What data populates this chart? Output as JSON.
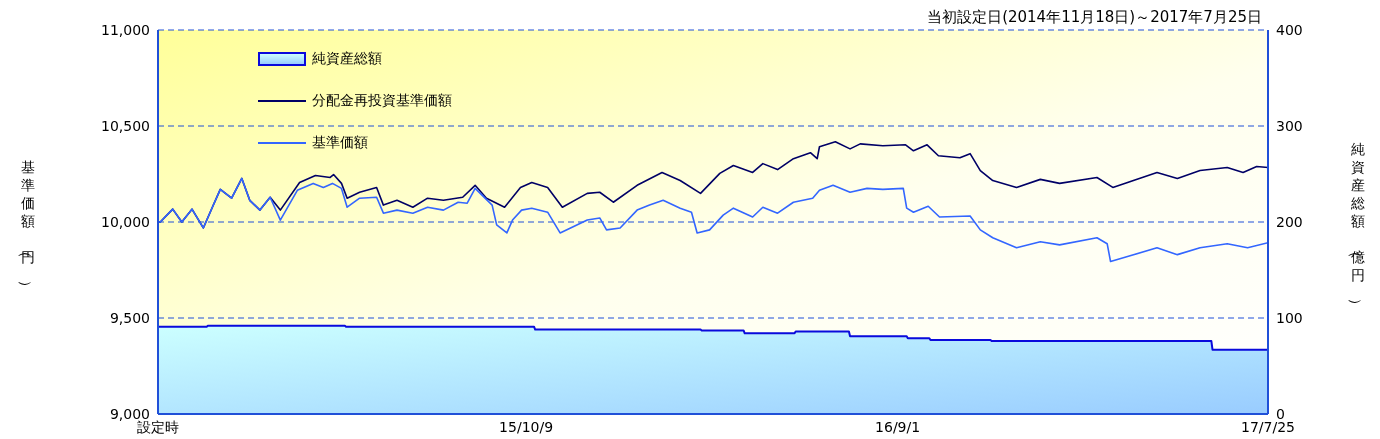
{
  "chart_data": {
    "type": "line",
    "title": "当初設定日(2014年11月18日)～2017年7月25日",
    "ylabel": "基準価額（円）",
    "y2label": "純資産総額（億円）",
    "xlim": [
      "2014-11-18",
      "2017-07-25"
    ],
    "xticks": [
      {
        "value": "2014-11-18",
        "label": "設定時"
      },
      {
        "value": "2015-10-09",
        "label": "15/10/9"
      },
      {
        "value": "2016-09-01",
        "label": "16/9/1"
      },
      {
        "value": "2017-07-25",
        "label": "17/7/25"
      }
    ],
    "ylim": [
      9000,
      11000
    ],
    "yticks": [
      {
        "value": 9000,
        "label": "9,000"
      },
      {
        "value": 9500,
        "label": "9,500"
      },
      {
        "value": 10000,
        "label": "10,000"
      },
      {
        "value": 10500,
        "label": "10,500"
      },
      {
        "value": 11000,
        "label": "11,000"
      }
    ],
    "y2lim": [
      0,
      400
    ],
    "y2ticks": [
      0,
      100,
      200,
      300,
      400
    ],
    "grid": "y",
    "legend": "top left",
    "marker": "none",
    "line_style": "solid",
    "series": [
      {
        "name": "純資産総額",
        "type": "area",
        "axis": "y2",
        "color": "#0a0adc",
        "x": [
          "2014-11-18",
          "2014-12-31",
          "2015-01-01",
          "2015-05-02",
          "2015-05-03",
          "2015-10-16",
          "2015-10-17",
          "2016-03-11",
          "2016-03-12",
          "2016-04-18",
          "2016-04-19",
          "2016-06-02",
          "2016-06-03",
          "2016-07-20",
          "2016-07-21",
          "2016-09-09",
          "2016-09-10",
          "2016-09-29",
          "2016-09-30",
          "2016-11-22",
          "2016-11-23",
          "2017-06-05",
          "2017-06-06",
          "2017-07-25"
        ],
        "values": [
          91,
          91,
          92,
          92,
          91,
          91,
          88,
          88,
          87,
          87,
          84,
          84,
          86,
          86,
          81,
          81,
          79,
          79,
          77,
          77,
          76,
          76,
          67,
          67
        ]
      },
      {
        "name": "分配金再投資基準価額",
        "color": "#000066",
        "x": [
          "2014-11-18",
          "2014-11-20",
          "2014-12-01",
          "2014-12-09",
          "2014-12-18",
          "2014-12-28",
          "2015-01-05",
          "2015-01-12",
          "2015-01-22",
          "2015-01-31",
          "2015-02-07",
          "2015-02-16",
          "2015-02-25",
          "2015-03-06",
          "2015-03-23",
          "2015-04-06",
          "2015-04-19",
          "2015-04-22",
          "2015-04-29",
          "2015-05-04",
          "2015-05-15",
          "2015-05-30",
          "2015-06-05",
          "2015-06-17",
          "2015-07-01",
          "2015-07-14",
          "2015-07-28",
          "2015-08-14",
          "2015-08-25",
          "2015-09-04",
          "2015-09-20",
          "2015-10-04",
          "2015-10-14",
          "2015-10-28",
          "2015-11-10",
          "2015-12-02",
          "2015-12-13",
          "2015-12-25",
          "2016-01-15",
          "2016-02-06",
          "2016-02-22",
          "2016-03-11",
          "2016-03-28",
          "2016-04-09",
          "2016-04-26",
          "2016-05-05",
          "2016-05-18",
          "2016-06-01",
          "2016-06-16",
          "2016-06-22",
          "2016-06-24",
          "2016-07-08",
          "2016-07-21",
          "2016-07-30",
          "2016-08-19",
          "2016-09-08",
          "2016-09-15",
          "2016-09-27",
          "2016-10-07",
          "2016-10-26",
          "2016-11-04",
          "2016-11-13",
          "2016-11-24",
          "2016-12-15",
          "2017-01-05",
          "2017-01-22",
          "2017-02-24",
          "2017-03-10",
          "2017-04-18",
          "2017-05-06",
          "2017-05-26",
          "2017-06-19",
          "2017-07-03",
          "2017-07-15",
          "2017-07-25"
        ],
        "values": [
          10000,
          10000,
          10067,
          10000,
          10067,
          9969,
          10077,
          10170,
          10124,
          10227,
          10113,
          10062,
          10129,
          10062,
          10206,
          10242,
          10232,
          10247,
          10201,
          10124,
          10155,
          10180,
          10088,
          10113,
          10077,
          10124,
          10113,
          10129,
          10191,
          10124,
          10077,
          10180,
          10206,
          10180,
          10077,
          10149,
          10155,
          10103,
          10191,
          10258,
          10216,
          10149,
          10253,
          10294,
          10258,
          10304,
          10273,
          10330,
          10361,
          10330,
          10392,
          10418,
          10381,
          10407,
          10397,
          10402,
          10371,
          10402,
          10345,
          10335,
          10356,
          10268,
          10216,
          10180,
          10222,
          10201,
          10232,
          10180,
          10258,
          10227,
          10268,
          10284,
          10258,
          10289,
          10284
        ]
      },
      {
        "name": "基準価額",
        "color": "#3366ff",
        "x": [
          "2014-11-18",
          "2014-11-20",
          "2014-12-01",
          "2014-12-09",
          "2014-12-18",
          "2014-12-28",
          "2015-01-05",
          "2015-01-12",
          "2015-01-22",
          "2015-01-31",
          "2015-02-07",
          "2015-02-16",
          "2015-02-25",
          "2015-03-06",
          "2015-03-21",
          "2015-04-04",
          "2015-04-13",
          "2015-04-21",
          "2015-04-29",
          "2015-05-04",
          "2015-05-15",
          "2015-05-30",
          "2015-06-05",
          "2015-06-17",
          "2015-07-01",
          "2015-07-14",
          "2015-07-28",
          "2015-08-10",
          "2015-08-18",
          "2015-08-25",
          "2015-09-09",
          "2015-09-13",
          "2015-09-22",
          "2015-09-27",
          "2015-10-05",
          "2015-10-14",
          "2015-10-28",
          "2015-11-08",
          "2015-12-02",
          "2015-12-13",
          "2015-12-19",
          "2015-12-31",
          "2016-01-15",
          "2016-01-26",
          "2016-02-07",
          "2016-02-22",
          "2016-03-03",
          "2016-03-08",
          "2016-03-19",
          "2016-03-31",
          "2016-04-09",
          "2016-04-26",
          "2016-05-05",
          "2016-05-18",
          "2016-06-01",
          "2016-06-18",
          "2016-06-24",
          "2016-07-06",
          "2016-07-21",
          "2016-08-05",
          "2016-08-19",
          "2016-09-06",
          "2016-09-09",
          "2016-09-15",
          "2016-09-28",
          "2016-10-08",
          "2016-11-04",
          "2016-11-13",
          "2016-11-24",
          "2016-12-15",
          "2017-01-05",
          "2017-01-22",
          "2017-02-24",
          "2017-03-05",
          "2017-03-08",
          "2017-03-23",
          "2017-04-18",
          "2017-05-06",
          "2017-05-26",
          "2017-06-19",
          "2017-07-07",
          "2017-07-25"
        ],
        "values": [
          10000,
          10000,
          10067,
          10000,
          10067,
          9969,
          10077,
          10170,
          10124,
          10227,
          10113,
          10062,
          10129,
          10010,
          10165,
          10201,
          10180,
          10201,
          10175,
          10077,
          10124,
          10129,
          10046,
          10062,
          10046,
          10077,
          10062,
          10103,
          10098,
          10175,
          10088,
          9985,
          9943,
          10010,
          10062,
          10072,
          10051,
          9943,
          10010,
          10021,
          9959,
          9969,
          10062,
          10088,
          10113,
          10072,
          10051,
          9943,
          9959,
          10036,
          10072,
          10026,
          10077,
          10046,
          10103,
          10124,
          10165,
          10191,
          10155,
          10175,
          10170,
          10175,
          10072,
          10051,
          10082,
          10026,
          10031,
          9959,
          9918,
          9866,
          9897,
          9881,
          9918,
          9887,
          9794,
          9820,
          9866,
          9830,
          9866,
          9887,
          9866,
          9892
        ]
      }
    ]
  }
}
